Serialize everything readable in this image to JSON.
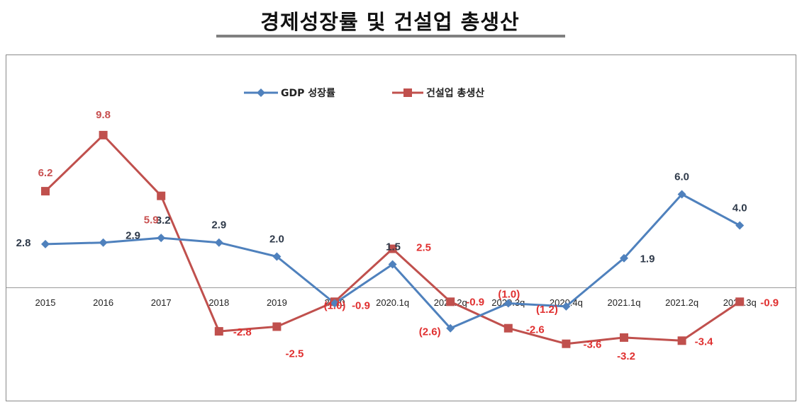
{
  "title": "경제성장률 및 건설업 총생산",
  "colors": {
    "gdp": "#4f81bd",
    "construction": "#c0504d",
    "label_red": "#e03030",
    "axis": "#8a8a8a"
  },
  "chart_data": {
    "type": "line",
    "categories": [
      "2015",
      "2016",
      "2017",
      "2018",
      "2019",
      "2020",
      "2020.1q",
      "2020.2q",
      "2020.3q",
      "2020.4q",
      "2021.1q",
      "2021.2q",
      "2021.3q"
    ],
    "series": [
      {
        "name": "GDP 성장률",
        "values": [
          2.8,
          2.9,
          3.2,
          2.9,
          2.0,
          -1.0,
          1.5,
          -2.6,
          -1.0,
          -1.2,
          1.9,
          6.0,
          4.0
        ],
        "labels": [
          "2.8",
          "2.9",
          "3.2",
          "2.9",
          "2.0",
          "(1.0)",
          "1.5",
          "(2.6)",
          "(1.0)",
          "(1.2)",
          "1.9",
          "6.0",
          "4.0"
        ]
      },
      {
        "name": "건설업 총생산",
        "values": [
          6.2,
          9.8,
          5.9,
          -2.8,
          -2.5,
          -0.9,
          2.5,
          -0.9,
          -2.6,
          -3.6,
          -3.2,
          -3.4,
          -0.9
        ],
        "labels": [
          "6.2",
          "9.8",
          "5.9",
          "-2.8",
          "-2.5",
          "-0.9",
          "2.5",
          "-0.9",
          "-2.6",
          "-3.6",
          "-3.2",
          "-3.4",
          "-0.9"
        ]
      }
    ],
    "legend_position": "top-center",
    "grid": false
  }
}
